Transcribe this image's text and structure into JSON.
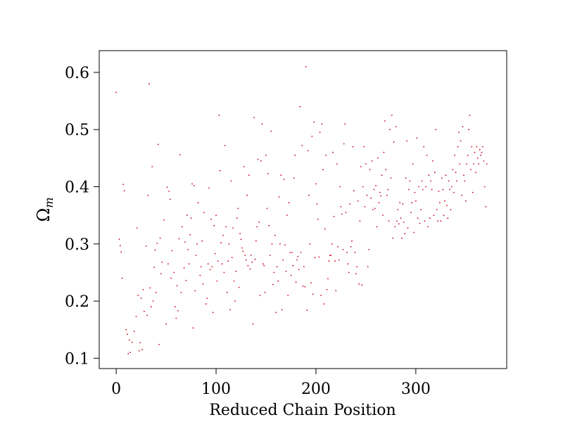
{
  "chart_data": {
    "type": "scatter",
    "title": "",
    "xlabel": "Reduced Chain Position",
    "ylabel": "Ω",
    "ylabel_subscript": "m",
    "xlim": [
      -17,
      391
    ],
    "ylim": [
      0.082,
      0.638
    ],
    "x_ticks": [
      {
        "value": 0,
        "label": "0"
      },
      {
        "value": 100,
        "label": "100"
      },
      {
        "value": 200,
        "label": "200"
      },
      {
        "value": 300,
        "label": "300"
      }
    ],
    "y_ticks": [
      {
        "value": 0.1,
        "label": "0.1"
      },
      {
        "value": 0.2,
        "label": "0.2"
      },
      {
        "value": 0.3,
        "label": "0.3"
      },
      {
        "value": 0.4,
        "label": "0.4"
      },
      {
        "value": 0.5,
        "label": "0.5"
      },
      {
        "value": 0.6,
        "label": "0.6"
      }
    ],
    "grid": false,
    "legend": "none",
    "marker_color": "#c8001e",
    "points": [
      [
        0,
        0.565
      ],
      [
        3,
        0.308
      ],
      [
        4,
        0.297
      ],
      [
        5,
        0.286
      ],
      [
        6,
        0.24
      ],
      [
        7,
        0.404
      ],
      [
        8,
        0.393
      ],
      [
        10,
        0.15
      ],
      [
        11,
        0.142
      ],
      [
        12,
        0.108
      ],
      [
        13,
        0.132
      ],
      [
        14,
        0.11
      ],
      [
        16,
        0.128
      ],
      [
        18,
        0.147
      ],
      [
        20,
        0.173
      ],
      [
        21,
        0.328
      ],
      [
        22,
        0.21
      ],
      [
        23,
        0.113
      ],
      [
        24,
        0.127
      ],
      [
        25,
        0.205
      ],
      [
        26,
        0.115
      ],
      [
        27,
        0.22
      ],
      [
        28,
        0.182
      ],
      [
        30,
        0.296
      ],
      [
        31,
        0.175
      ],
      [
        32,
        0.385
      ],
      [
        33,
        0.58
      ],
      [
        34,
        0.223
      ],
      [
        35,
        0.19
      ],
      [
        36,
        0.435
      ],
      [
        37,
        0.2
      ],
      [
        38,
        0.259
      ],
      [
        39,
        0.289
      ],
      [
        40,
        0.215
      ],
      [
        41,
        0.301
      ],
      [
        42,
        0.474
      ],
      [
        43,
        0.124
      ],
      [
        44,
        0.31
      ],
      [
        45,
        0.248
      ],
      [
        46,
        0.268
      ],
      [
        48,
        0.342
      ],
      [
        50,
        0.16
      ],
      [
        51,
        0.399
      ],
      [
        52,
        0.265
      ],
      [
        53,
        0.392
      ],
      [
        54,
        0.378
      ],
      [
        55,
        0.24
      ],
      [
        56,
        0.288
      ],
      [
        58,
        0.25
      ],
      [
        59,
        0.19
      ],
      [
        60,
        0.17
      ],
      [
        61,
        0.227
      ],
      [
        62,
        0.183
      ],
      [
        63,
        0.309
      ],
      [
        64,
        0.456
      ],
      [
        65,
        0.215
      ],
      [
        66,
        0.33
      ],
      [
        68,
        0.258
      ],
      [
        69,
        0.303
      ],
      [
        70,
        0.236
      ],
      [
        71,
        0.35
      ],
      [
        72,
        0.29
      ],
      [
        73,
        0.265
      ],
      [
        74,
        0.316
      ],
      [
        75,
        0.345
      ],
      [
        76,
        0.405
      ],
      [
        77,
        0.153
      ],
      [
        78,
        0.402
      ],
      [
        79,
        0.218
      ],
      [
        80,
        0.28
      ],
      [
        81,
        0.3
      ],
      [
        82,
        0.372
      ],
      [
        84,
        0.245
      ],
      [
        85,
        0.26
      ],
      [
        86,
        0.305
      ],
      [
        87,
        0.23
      ],
      [
        88,
        0.355
      ],
      [
        90,
        0.195
      ],
      [
        91,
        0.205
      ],
      [
        92,
        0.265
      ],
      [
        93,
        0.398
      ],
      [
        94,
        0.255
      ],
      [
        95,
        0.343
      ],
      [
        96,
        0.26
      ],
      [
        97,
        0.18
      ],
      [
        98,
        0.332
      ],
      [
        99,
        0.283
      ],
      [
        100,
        0.35
      ],
      [
        101,
        0.235
      ],
      [
        102,
        0.27
      ],
      [
        103,
        0.525
      ],
      [
        104,
        0.428
      ],
      [
        105,
        0.302
      ],
      [
        106,
        0.265
      ],
      [
        107,
        0.315
      ],
      [
        108,
        0.25
      ],
      [
        109,
        0.472
      ],
      [
        110,
        0.33
      ],
      [
        111,
        0.215
      ],
      [
        112,
        0.27
      ],
      [
        113,
        0.3
      ],
      [
        114,
        0.185
      ],
      [
        115,
        0.41
      ],
      [
        116,
        0.276
      ],
      [
        117,
        0.328
      ],
      [
        118,
        0.235
      ],
      [
        119,
        0.2
      ],
      [
        120,
        0.252
      ],
      [
        121,
        0.345
      ],
      [
        122,
        0.362
      ],
      [
        123,
        0.224
      ],
      [
        124,
        0.318
      ],
      [
        125,
        0.308
      ],
      [
        126,
        0.293
      ],
      [
        127,
        0.287
      ],
      [
        128,
        0.435
      ],
      [
        129,
        0.28
      ],
      [
        130,
        0.272
      ],
      [
        131,
        0.385
      ],
      [
        132,
        0.262
      ],
      [
        133,
        0.42
      ],
      [
        134,
        0.256
      ],
      [
        135,
        0.28
      ],
      [
        136,
        0.268
      ],
      [
        137,
        0.16
      ],
      [
        138,
        0.521
      ],
      [
        139,
        0.273
      ],
      [
        140,
        0.305
      ],
      [
        141,
        0.33
      ],
      [
        142,
        0.448
      ],
      [
        143,
        0.338
      ],
      [
        144,
        0.21
      ],
      [
        145,
        0.445
      ],
      [
        146,
        0.51
      ],
      [
        147,
        0.265
      ],
      [
        148,
        0.262
      ],
      [
        149,
        0.215
      ],
      [
        150,
        0.455
      ],
      [
        151,
        0.362
      ],
      [
        152,
        0.423
      ],
      [
        153,
        0.332
      ],
      [
        154,
        0.28
      ],
      [
        155,
        0.497
      ],
      [
        156,
        0.3
      ],
      [
        157,
        0.229
      ],
      [
        158,
        0.25
      ],
      [
        159,
        0.315
      ],
      [
        160,
        0.18
      ],
      [
        161,
        0.26
      ],
      [
        162,
        0.235
      ],
      [
        163,
        0.382
      ],
      [
        164,
        0.3
      ],
      [
        165,
        0.42
      ],
      [
        166,
        0.185
      ],
      [
        167,
        0.272
      ],
      [
        168,
        0.413
      ],
      [
        169,
        0.298
      ],
      [
        170,
        0.252
      ],
      [
        171,
        0.35
      ],
      [
        172,
        0.21
      ],
      [
        173,
        0.372
      ],
      [
        174,
        0.285
      ],
      [
        175,
        0.245
      ],
      [
        176,
        0.285
      ],
      [
        177,
        0.262
      ],
      [
        178,
        0.415
      ],
      [
        179,
        0.455
      ],
      [
        180,
        0.233
      ],
      [
        181,
        0.272
      ],
      [
        182,
        0.278
      ],
      [
        183,
        0.255
      ],
      [
        184,
        0.54
      ],
      [
        185,
        0.285
      ],
      [
        186,
        0.472
      ],
      [
        187,
        0.226
      ],
      [
        188,
        0.26
      ],
      [
        189,
        0.225
      ],
      [
        190,
        0.61
      ],
      [
        191,
        0.184
      ],
      [
        192,
        0.463
      ],
      [
        193,
        0.385
      ],
      [
        194,
        0.3
      ],
      [
        195,
        0.232
      ],
      [
        196,
        0.488
      ],
      [
        197,
        0.212
      ],
      [
        198,
        0.513
      ],
      [
        199,
        0.276
      ],
      [
        200,
        0.405
      ],
      [
        201,
        0.37
      ],
      [
        202,
        0.343
      ],
      [
        203,
        0.277
      ],
      [
        204,
        0.495
      ],
      [
        205,
        0.21
      ],
      [
        206,
        0.51
      ],
      [
        207,
        0.43
      ],
      [
        208,
        0.195
      ],
      [
        209,
        0.326
      ],
      [
        210,
        0.455
      ],
      [
        211,
        0.22
      ],
      [
        212,
        0.239
      ],
      [
        213,
        0.27
      ],
      [
        214,
        0.28
      ],
      [
        215,
        0.28
      ],
      [
        216,
        0.3
      ],
      [
        217,
        0.46
      ],
      [
        218,
        0.348
      ],
      [
        219,
        0.27
      ],
      [
        220,
        0.218
      ],
      [
        221,
        0.44
      ],
      [
        222,
        0.295
      ],
      [
        223,
        0.272
      ],
      [
        224,
        0.4
      ],
      [
        225,
        0.365
      ],
      [
        226,
        0.352
      ],
      [
        227,
        0.29
      ],
      [
        228,
        0.475
      ],
      [
        229,
        0.51
      ],
      [
        230,
        0.355
      ],
      [
        231,
        0.285
      ],
      [
        232,
        0.265
      ],
      [
        233,
        0.25
      ],
      [
        234,
        0.37
      ],
      [
        235,
        0.295
      ],
      [
        236,
        0.305
      ],
      [
        237,
        0.47
      ],
      [
        238,
        0.393
      ],
      [
        239,
        0.285
      ],
      [
        240,
        0.248
      ],
      [
        241,
        0.26
      ],
      [
        242,
        0.375
      ],
      [
        243,
        0.23
      ],
      [
        244,
        0.34
      ],
      [
        245,
        0.435
      ],
      [
        246,
        0.228
      ],
      [
        247,
        0.4
      ],
      [
        248,
        0.47
      ],
      [
        249,
        0.365
      ],
      [
        250,
        0.44
      ],
      [
        251,
        0.385
      ],
      [
        252,
        0.26
      ],
      [
        253,
        0.29
      ],
      [
        254,
        0.43
      ],
      [
        255,
        0.38
      ],
      [
        256,
        0.445
      ],
      [
        257,
        0.36
      ],
      [
        258,
        0.395
      ],
      [
        259,
        0.362
      ],
      [
        260,
        0.402
      ],
      [
        261,
        0.33
      ],
      [
        262,
        0.45
      ],
      [
        263,
        0.372
      ],
      [
        264,
        0.39
      ],
      [
        265,
        0.384
      ],
      [
        266,
        0.42
      ],
      [
        267,
        0.35
      ],
      [
        268,
        0.46
      ],
      [
        269,
        0.515
      ],
      [
        270,
        0.43
      ],
      [
        271,
        0.385
      ],
      [
        272,
        0.395
      ],
      [
        273,
        0.34
      ],
      [
        274,
        0.5
      ],
      [
        275,
        0.415
      ],
      [
        276,
        0.525
      ],
      [
        277,
        0.31
      ],
      [
        278,
        0.478
      ],
      [
        279,
        0.33
      ],
      [
        280,
        0.505
      ],
      [
        281,
        0.34
      ],
      [
        282,
        0.36
      ],
      [
        283,
        0.335
      ],
      [
        284,
        0.372
      ],
      [
        285,
        0.345
      ],
      [
        286,
        0.31
      ],
      [
        287,
        0.37
      ],
      [
        288,
        0.338
      ],
      [
        289,
        0.318
      ],
      [
        290,
        0.415
      ],
      [
        291,
        0.48
      ],
      [
        292,
        0.328
      ],
      [
        293,
        0.395
      ],
      [
        294,
        0.41
      ],
      [
        295,
        0.355
      ],
      [
        296,
        0.372
      ],
      [
        297,
        0.44
      ],
      [
        298,
        0.32
      ],
      [
        299,
        0.39
      ],
      [
        300,
        0.375
      ],
      [
        301,
        0.485
      ],
      [
        302,
        0.345
      ],
      [
        303,
        0.4
      ],
      [
        304,
        0.336
      ],
      [
        305,
        0.36
      ],
      [
        306,
        0.41
      ],
      [
        307,
        0.395
      ],
      [
        308,
        0.47
      ],
      [
        309,
        0.34
      ],
      [
        310,
        0.4
      ],
      [
        311,
        0.455
      ],
      [
        312,
        0.33
      ],
      [
        313,
        0.42
      ],
      [
        314,
        0.345
      ],
      [
        315,
        0.41
      ],
      [
        316,
        0.395
      ],
      [
        317,
        0.445
      ],
      [
        318,
        0.35
      ],
      [
        319,
        0.425
      ],
      [
        320,
        0.5
      ],
      [
        321,
        0.36
      ],
      [
        322,
        0.34
      ],
      [
        323,
        0.392
      ],
      [
        324,
        0.372
      ],
      [
        325,
        0.34
      ],
      [
        326,
        0.415
      ],
      [
        327,
        0.395
      ],
      [
        328,
        0.35
      ],
      [
        329,
        0.375
      ],
      [
        330,
        0.42
      ],
      [
        331,
        0.367
      ],
      [
        332,
        0.345
      ],
      [
        333,
        0.41
      ],
      [
        334,
        0.395
      ],
      [
        335,
        0.36
      ],
      [
        336,
        0.4
      ],
      [
        337,
        0.43
      ],
      [
        338,
        0.39
      ],
      [
        339,
        0.455
      ],
      [
        340,
        0.425
      ],
      [
        341,
        0.41
      ],
      [
        342,
        0.47
      ],
      [
        343,
        0.495
      ],
      [
        344,
        0.44
      ],
      [
        345,
        0.48
      ],
      [
        346,
        0.385
      ],
      [
        347,
        0.505
      ],
      [
        348,
        0.42
      ],
      [
        349,
        0.41
      ],
      [
        350,
        0.375
      ],
      [
        351,
        0.44
      ],
      [
        352,
        0.455
      ],
      [
        353,
        0.5
      ],
      [
        354,
        0.525
      ],
      [
        355,
        0.43
      ],
      [
        356,
        0.47
      ],
      [
        357,
        0.39
      ],
      [
        358,
        0.44
      ],
      [
        359,
        0.46
      ],
      [
        360,
        0.425
      ],
      [
        361,
        0.47
      ],
      [
        362,
        0.45
      ],
      [
        363,
        0.44
      ],
      [
        364,
        0.465
      ],
      [
        365,
        0.455
      ],
      [
        366,
        0.46
      ],
      [
        367,
        0.47
      ],
      [
        368,
        0.445
      ],
      [
        369,
        0.4
      ],
      [
        370,
        0.365
      ],
      [
        371,
        0.44
      ]
    ]
  }
}
